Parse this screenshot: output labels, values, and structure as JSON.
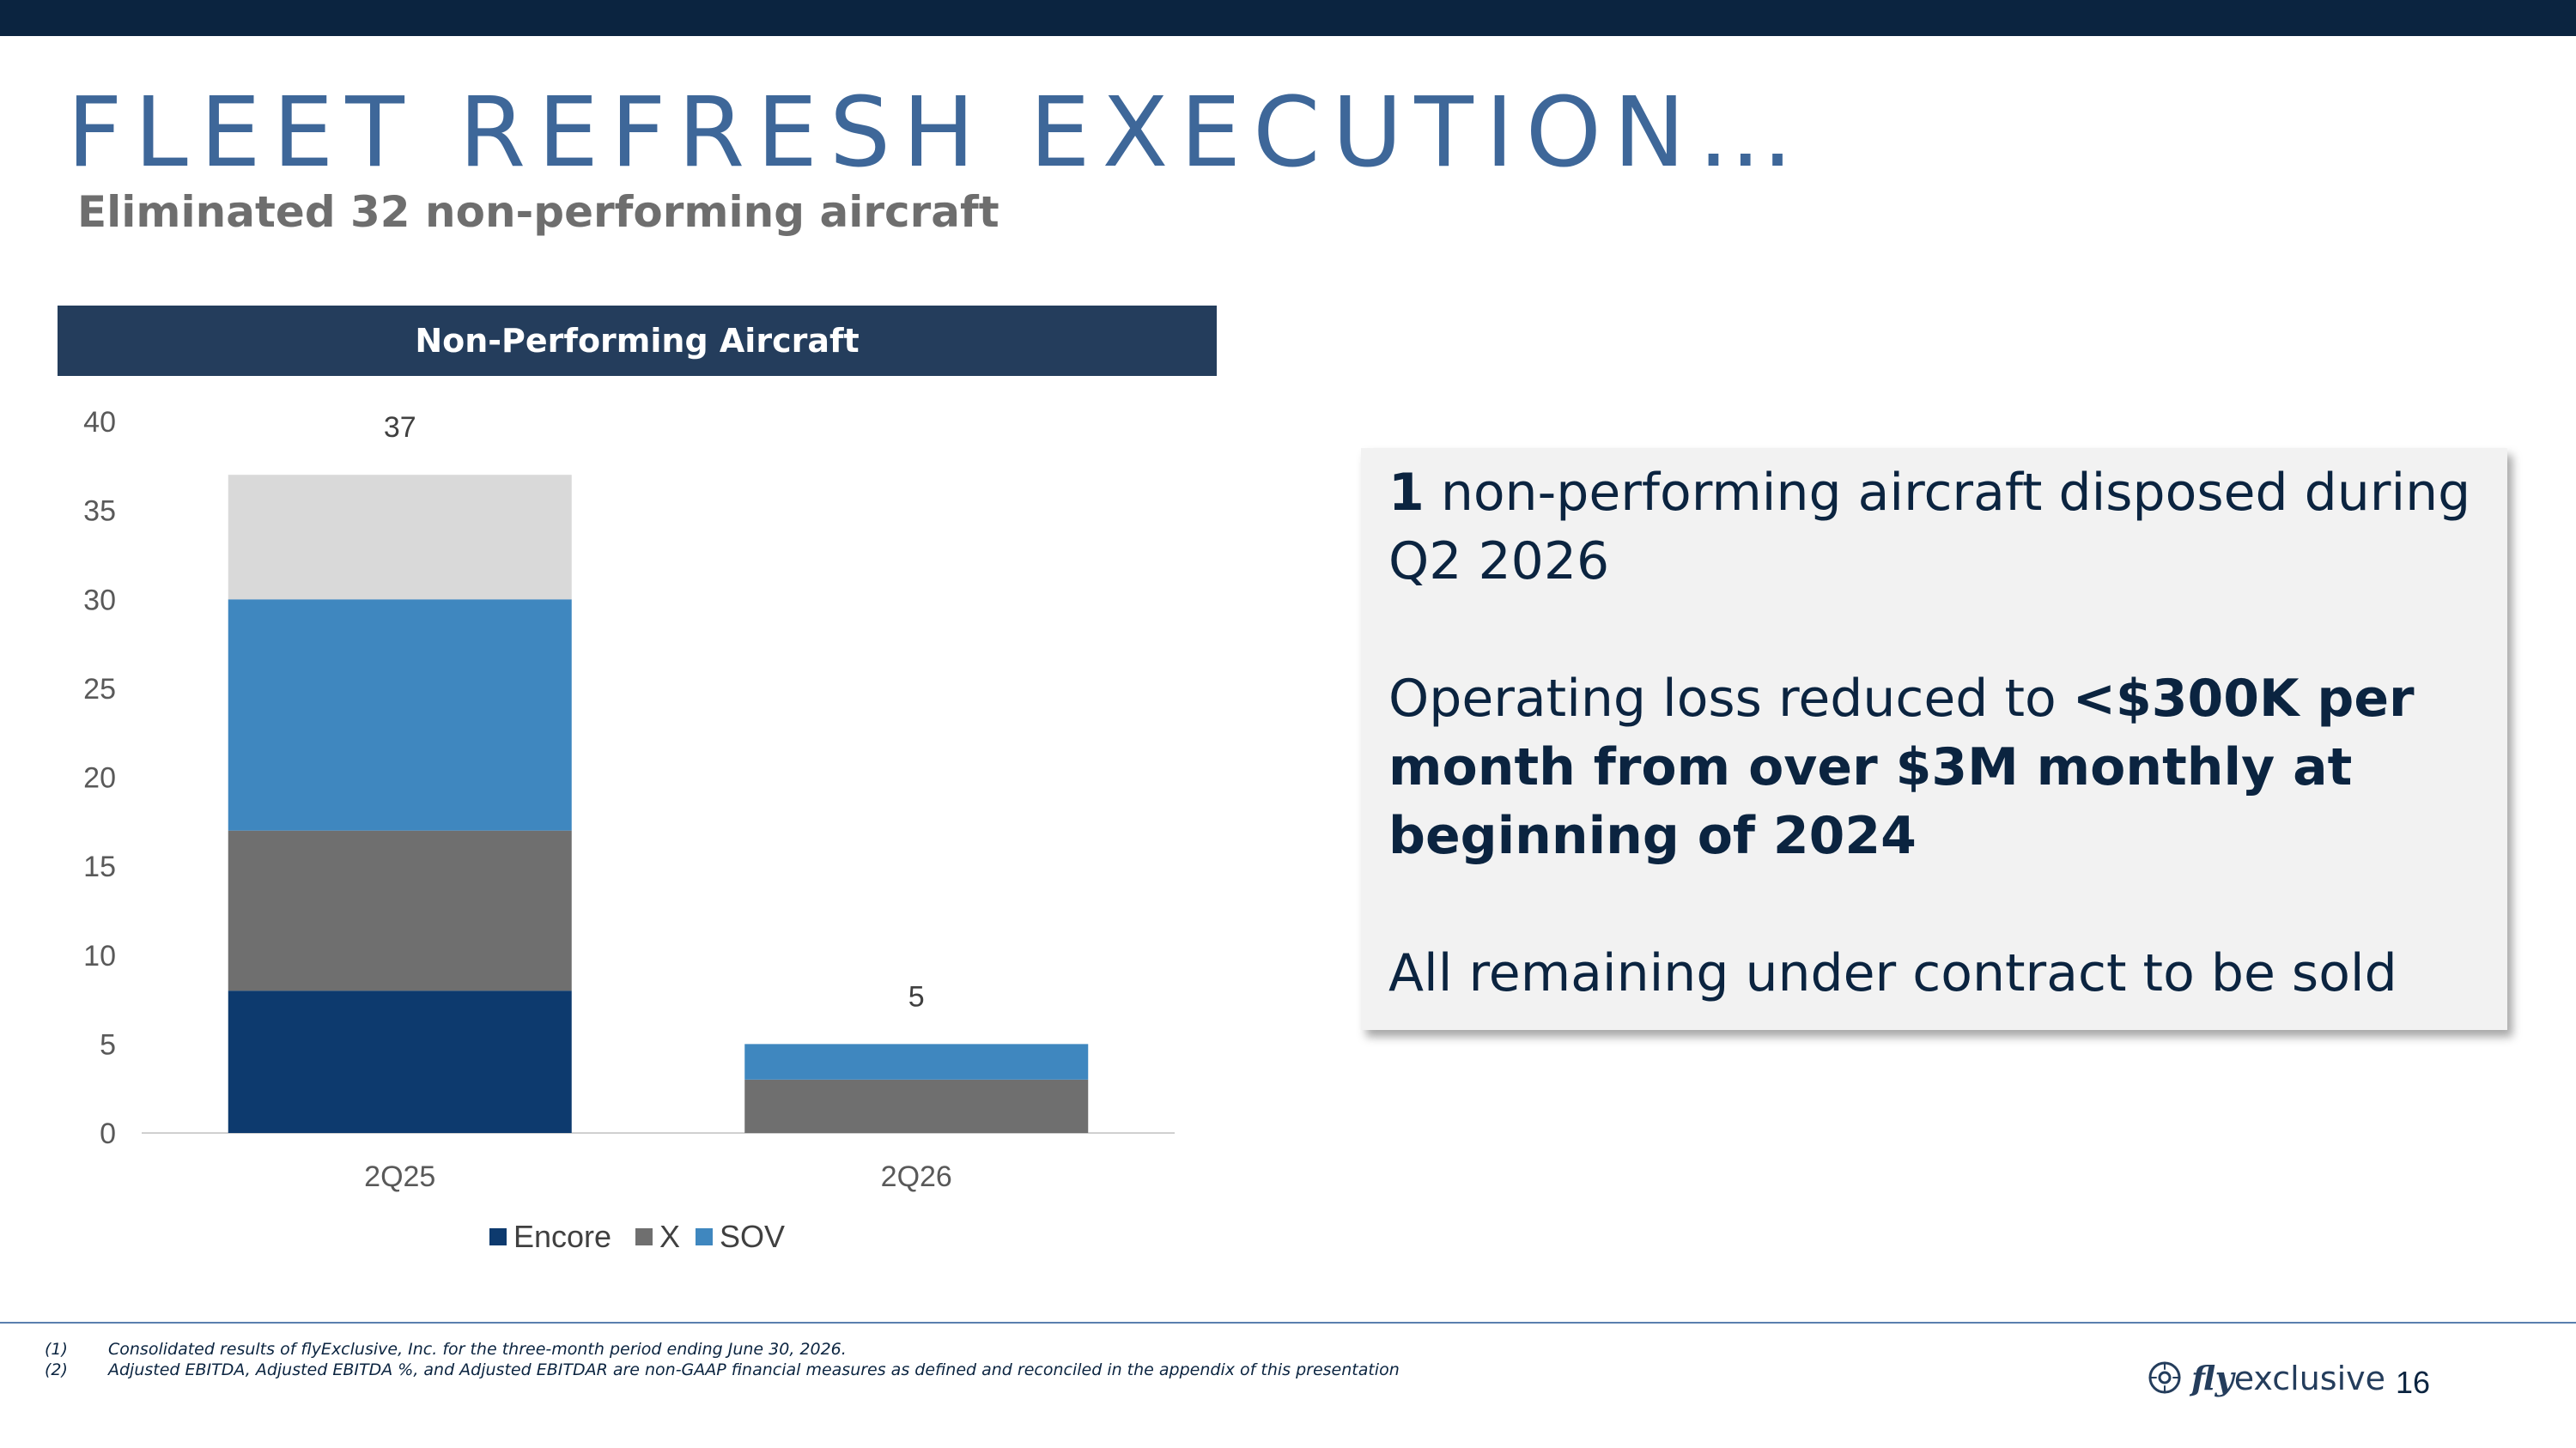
{
  "slide": {
    "title": "FLEET REFRESH EXECUTION…",
    "subtitle": "Eliminated 32 non-performing aircraft",
    "chart_header": "Non-Performing Aircraft",
    "page_number": "16"
  },
  "info": {
    "p1_bold": "1",
    "p1_text": " non-performing aircraft disposed during Q2 2026",
    "p2_text": "Operating loss reduced to ",
    "p2_bold": "<$300K per month from over $3M monthly at beginning of 2024",
    "p3_text": "All remaining under contract to be sold"
  },
  "footnotes": [
    {
      "num": "(1)",
      "text": "Consolidated results of flyExclusive, Inc. for the three-month period ending June 30, 2026."
    },
    {
      "num": "(2)",
      "text": "Adjusted EBITDA, Adjusted EBITDA %, and Adjusted EBITDAR are non-GAAP financial measures as defined and reconciled in the appendix of this presentation"
    }
  ],
  "logo": {
    "fly": "fly",
    "rest": "exclusive"
  },
  "chart_data": {
    "type": "bar",
    "stacked": true,
    "title": "Non-Performing Aircraft",
    "categories": [
      "2Q25",
      "2Q26"
    ],
    "series": [
      {
        "name": "Encore",
        "values": [
          8,
          0
        ],
        "color": "#0d3a6e"
      },
      {
        "name": "X",
        "values": [
          9,
          3
        ],
        "color": "#6f6f6f"
      },
      {
        "name": "SOV",
        "values": [
          13,
          2
        ],
        "color": "#3f87bf"
      },
      {
        "name": "",
        "values": [
          7,
          0
        ],
        "color": "#d9d9d9"
      }
    ],
    "totals": [
      37,
      5
    ],
    "ylim": [
      0,
      40
    ],
    "yticks": [
      0,
      5,
      10,
      15,
      20,
      25,
      30,
      35,
      40
    ],
    "legend_position": "bottom",
    "grid": false
  }
}
